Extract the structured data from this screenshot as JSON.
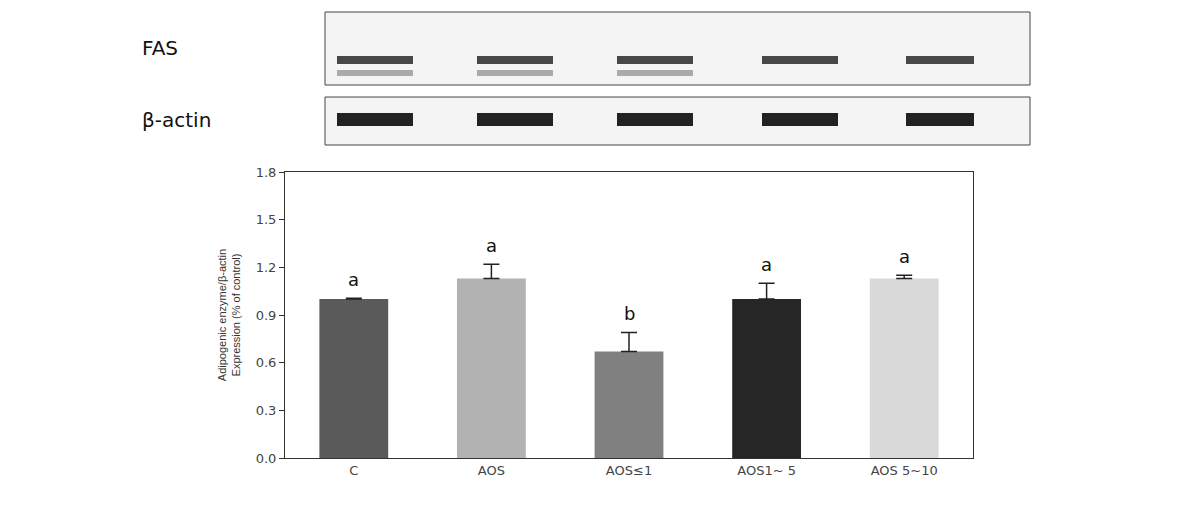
{
  "chart_data": {
    "type": "bar",
    "categories": [
      "C",
      "AOS",
      "AOS≤1",
      "AOS1~ 5",
      "AOS 5~10"
    ],
    "values": [
      1.0,
      1.13,
      0.67,
      1.0,
      1.13
    ],
    "errors": [
      0.005,
      0.09,
      0.12,
      0.1,
      0.02
    ],
    "colors": [
      "#5a5a5a",
      "#b2b2b2",
      "#808080",
      "#262626",
      "#d9d9d9"
    ],
    "ylabel": [
      "Adipogenic enzyme/β-actin",
      "Expression (% of control)"
    ],
    "ylim": [
      0,
      1.8
    ],
    "yticks": [
      {
        "value": 0,
        "label": "0.0"
      },
      0.3,
      0.6,
      0.9,
      1.2,
      1.5,
      1.8
    ],
    "grid": false,
    "annotations": [
      {
        "category": "C",
        "text": "a"
      },
      {
        "category": "AOS",
        "text": "a"
      },
      {
        "category": "AOS≤1",
        "text": "b"
      },
      {
        "category": "AOS1~ 5",
        "text": "a"
      },
      {
        "category": "AOS 5~10",
        "text": "a"
      }
    ]
  },
  "blot": {
    "rows": [
      {
        "label": "FAS"
      },
      {
        "label": "β-actin"
      }
    ]
  }
}
